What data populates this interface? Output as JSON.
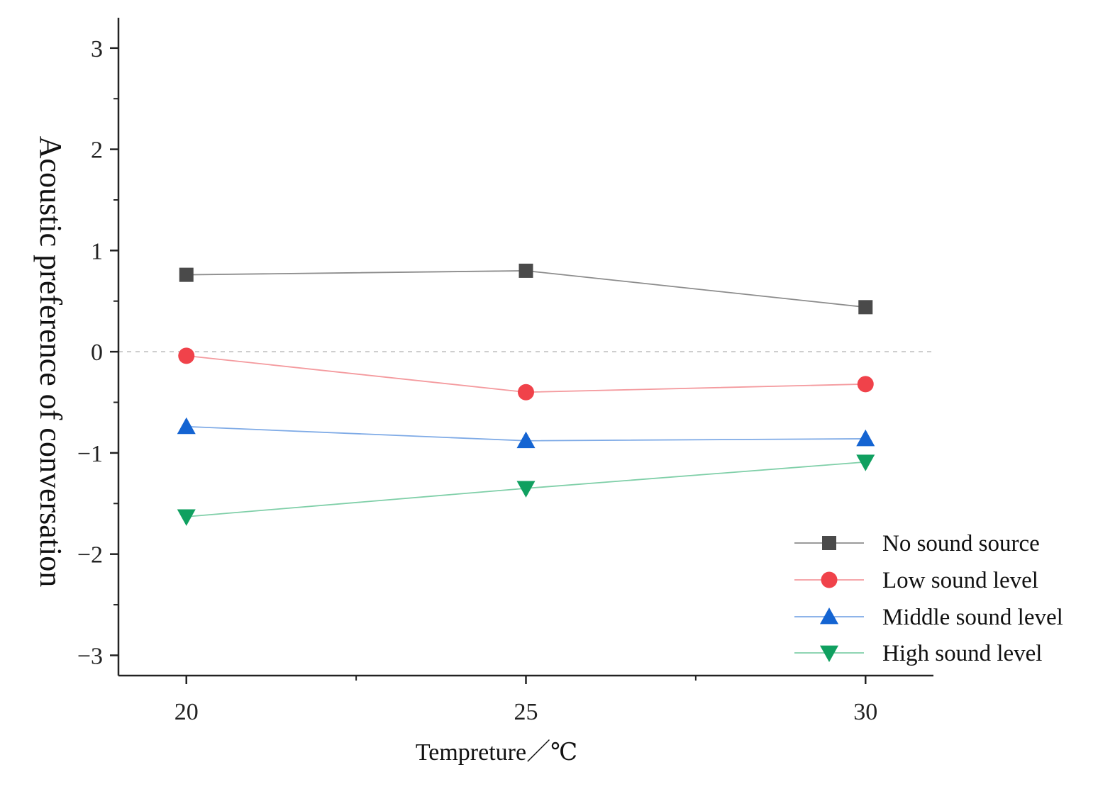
{
  "chart_data": {
    "type": "line",
    "title": "",
    "xlabel": "Tempreture／℃",
    "ylabel": "Acoustic preference of conversation",
    "x": [
      20,
      25,
      30
    ],
    "x_tick_labels": [
      "20",
      "25",
      "30"
    ],
    "xlim": [
      19,
      31
    ],
    "ylim": [
      -3.2,
      3.3
    ],
    "y_ticks": [
      3,
      2,
      1,
      0,
      -1,
      -2,
      -3
    ],
    "y_tick_labels": [
      "3",
      "2",
      "1",
      "0",
      "−1",
      "−2",
      "−3"
    ],
    "reference_line": {
      "y": 0,
      "style": "dashed"
    },
    "grid": false,
    "legend_position": "bottom-right",
    "series": [
      {
        "name": "No sound source",
        "marker": "square",
        "color": "#4a4a4a",
        "line_color": "#8c8c8c",
        "values": [
          0.76,
          0.8,
          0.44
        ]
      },
      {
        "name": "Low sound level",
        "marker": "circle",
        "color": "#f0424a",
        "line_color": "#f49a9e",
        "values": [
          -0.04,
          -0.4,
          -0.32
        ]
      },
      {
        "name": "Middle sound level",
        "marker": "triangle-up",
        "color": "#1464d2",
        "line_color": "#7eaae6",
        "values": [
          -0.74,
          -0.88,
          -0.86
        ]
      },
      {
        "name": "High sound level",
        "marker": "triangle-down",
        "color": "#10a060",
        "line_color": "#7fcfa8",
        "values": [
          -1.63,
          -1.35,
          -1.09
        ]
      }
    ]
  }
}
